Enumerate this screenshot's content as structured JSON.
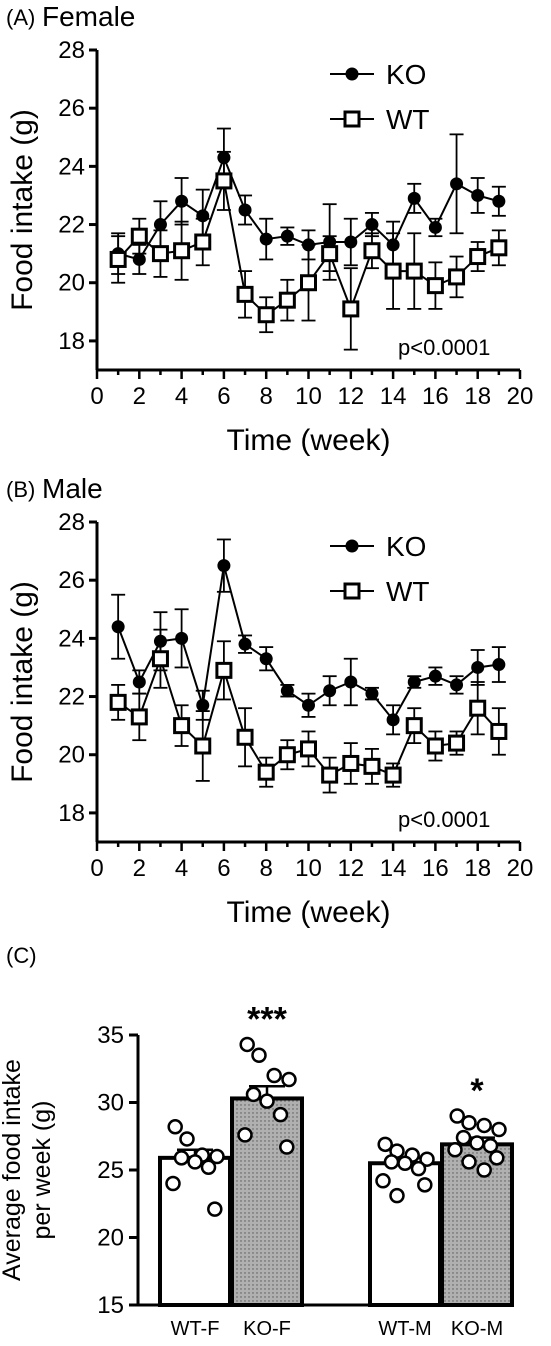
{
  "panels": {
    "a": {
      "label": "(A)",
      "title": "Female"
    },
    "b": {
      "label": "(B)",
      "title": "Male"
    },
    "c": {
      "label": "(C)"
    }
  },
  "chart_data": [
    {
      "type": "line",
      "panel": "a",
      "xlabel": "Time (week)",
      "ylabel": "Food intake (g)",
      "xlim": [
        0,
        20
      ],
      "ylim": [
        17,
        28
      ],
      "xticks": [
        0,
        2,
        4,
        6,
        8,
        10,
        12,
        14,
        16,
        18,
        20
      ],
      "yticks": [
        18,
        20,
        22,
        24,
        26,
        28
      ],
      "legend_position": "top-right",
      "annotation": "p<0.0001",
      "x": [
        1,
        2,
        3,
        4,
        5,
        6,
        7,
        8,
        9,
        10,
        11,
        12,
        13,
        14,
        15,
        16,
        17,
        18,
        19
      ],
      "series": [
        {
          "name": "KO",
          "marker": "filled-circle",
          "values": [
            21.0,
            20.8,
            22.0,
            22.8,
            22.3,
            24.3,
            22.5,
            21.5,
            21.6,
            21.3,
            21.4,
            21.4,
            22.0,
            21.3,
            22.9,
            21.9,
            23.4,
            23.0,
            22.8
          ],
          "errors": [
            0.7,
            0.5,
            0.8,
            0.8,
            0.9,
            1.0,
            0.5,
            0.7,
            0.3,
            0.5,
            1.3,
            0.8,
            0.4,
            0.8,
            0.5,
            0.3,
            1.7,
            0.6,
            0.5
          ]
        },
        {
          "name": "WT",
          "marker": "open-square",
          "values": [
            20.8,
            21.6,
            21.0,
            21.1,
            21.4,
            23.5,
            19.6,
            18.9,
            19.4,
            20.0,
            21.0,
            19.1,
            21.1,
            20.4,
            20.4,
            19.9,
            20.2,
            20.9,
            21.2
          ],
          "errors": [
            0.8,
            0.6,
            0.8,
            1.0,
            0.8,
            1.0,
            0.8,
            0.6,
            0.7,
            1.3,
            0.6,
            1.4,
            0.6,
            1.3,
            1.3,
            0.8,
            0.7,
            0.5,
            0.6
          ]
        }
      ]
    },
    {
      "type": "line",
      "panel": "b",
      "xlabel": "Time (week)",
      "ylabel": "Food intake (g)",
      "xlim": [
        0,
        20
      ],
      "ylim": [
        17,
        28
      ],
      "xticks": [
        0,
        2,
        4,
        6,
        8,
        10,
        12,
        14,
        16,
        18,
        20
      ],
      "yticks": [
        18,
        20,
        22,
        24,
        26,
        28
      ],
      "legend_position": "top-right",
      "annotation": "p<0.0001",
      "x": [
        1,
        2,
        3,
        4,
        5,
        6,
        7,
        8,
        9,
        10,
        11,
        12,
        13,
        14,
        15,
        16,
        17,
        18,
        19
      ],
      "series": [
        {
          "name": "KO",
          "marker": "filled-circle",
          "values": [
            24.4,
            22.5,
            23.9,
            24.0,
            21.7,
            26.5,
            23.8,
            23.3,
            22.2,
            21.7,
            22.2,
            22.5,
            22.1,
            21.2,
            22.5,
            22.7,
            22.4,
            23.0,
            23.1
          ],
          "errors": [
            1.1,
            0.4,
            1.0,
            1.0,
            0.5,
            0.9,
            0.3,
            0.4,
            0.2,
            0.4,
            0.5,
            0.8,
            0.2,
            0.5,
            0.2,
            0.3,
            0.3,
            0.6,
            0.6
          ]
        },
        {
          "name": "WT",
          "marker": "open-square",
          "values": [
            21.8,
            21.3,
            23.3,
            21.0,
            20.3,
            22.9,
            20.6,
            19.4,
            20.0,
            20.2,
            19.3,
            19.7,
            19.6,
            19.3,
            21.0,
            20.3,
            20.4,
            21.6,
            20.8
          ],
          "errors": [
            0.6,
            0.8,
            1.0,
            0.7,
            1.2,
            1.0,
            1.0,
            0.5,
            0.5,
            0.6,
            0.6,
            0.7,
            0.6,
            0.4,
            0.6,
            0.5,
            0.4,
            0.9,
            0.8
          ]
        }
      ]
    },
    {
      "type": "bar",
      "panel": "c",
      "ylabel": "Average food intake per week (g)",
      "ylabel_lines": [
        "Average food intake",
        "per week (g)"
      ],
      "ylim": [
        15,
        35
      ],
      "yticks": [
        15,
        20,
        25,
        30,
        35
      ],
      "categories": [
        "WT-F",
        "KO-F",
        "WT-M",
        "KO-M"
      ],
      "values": [
        25.9,
        30.3,
        25.5,
        26.9
      ],
      "errors": [
        0.6,
        0.9,
        0.4,
        0.5
      ],
      "fills": [
        "#ffffff",
        "#b8b8b8",
        "#ffffff",
        "#b8b8b8"
      ],
      "significance": [
        "",
        "***",
        "",
        "*"
      ],
      "points": [
        [
          28.2,
          27.3,
          26.1,
          26.0,
          25.9,
          25.6,
          25.2,
          24.0,
          22.1
        ],
        [
          34.3,
          33.5,
          32.0,
          31.7,
          30.6,
          30.1,
          29.1,
          27.6,
          26.7
        ],
        [
          26.9,
          26.4,
          26.1,
          25.8,
          25.6,
          25.5,
          25.1,
          24.2,
          23.9,
          23.1
        ],
        [
          29.0,
          28.5,
          28.3,
          28.0,
          27.4,
          27.0,
          26.8,
          26.5,
          25.9,
          25.6,
          25.0
        ]
      ]
    }
  ]
}
